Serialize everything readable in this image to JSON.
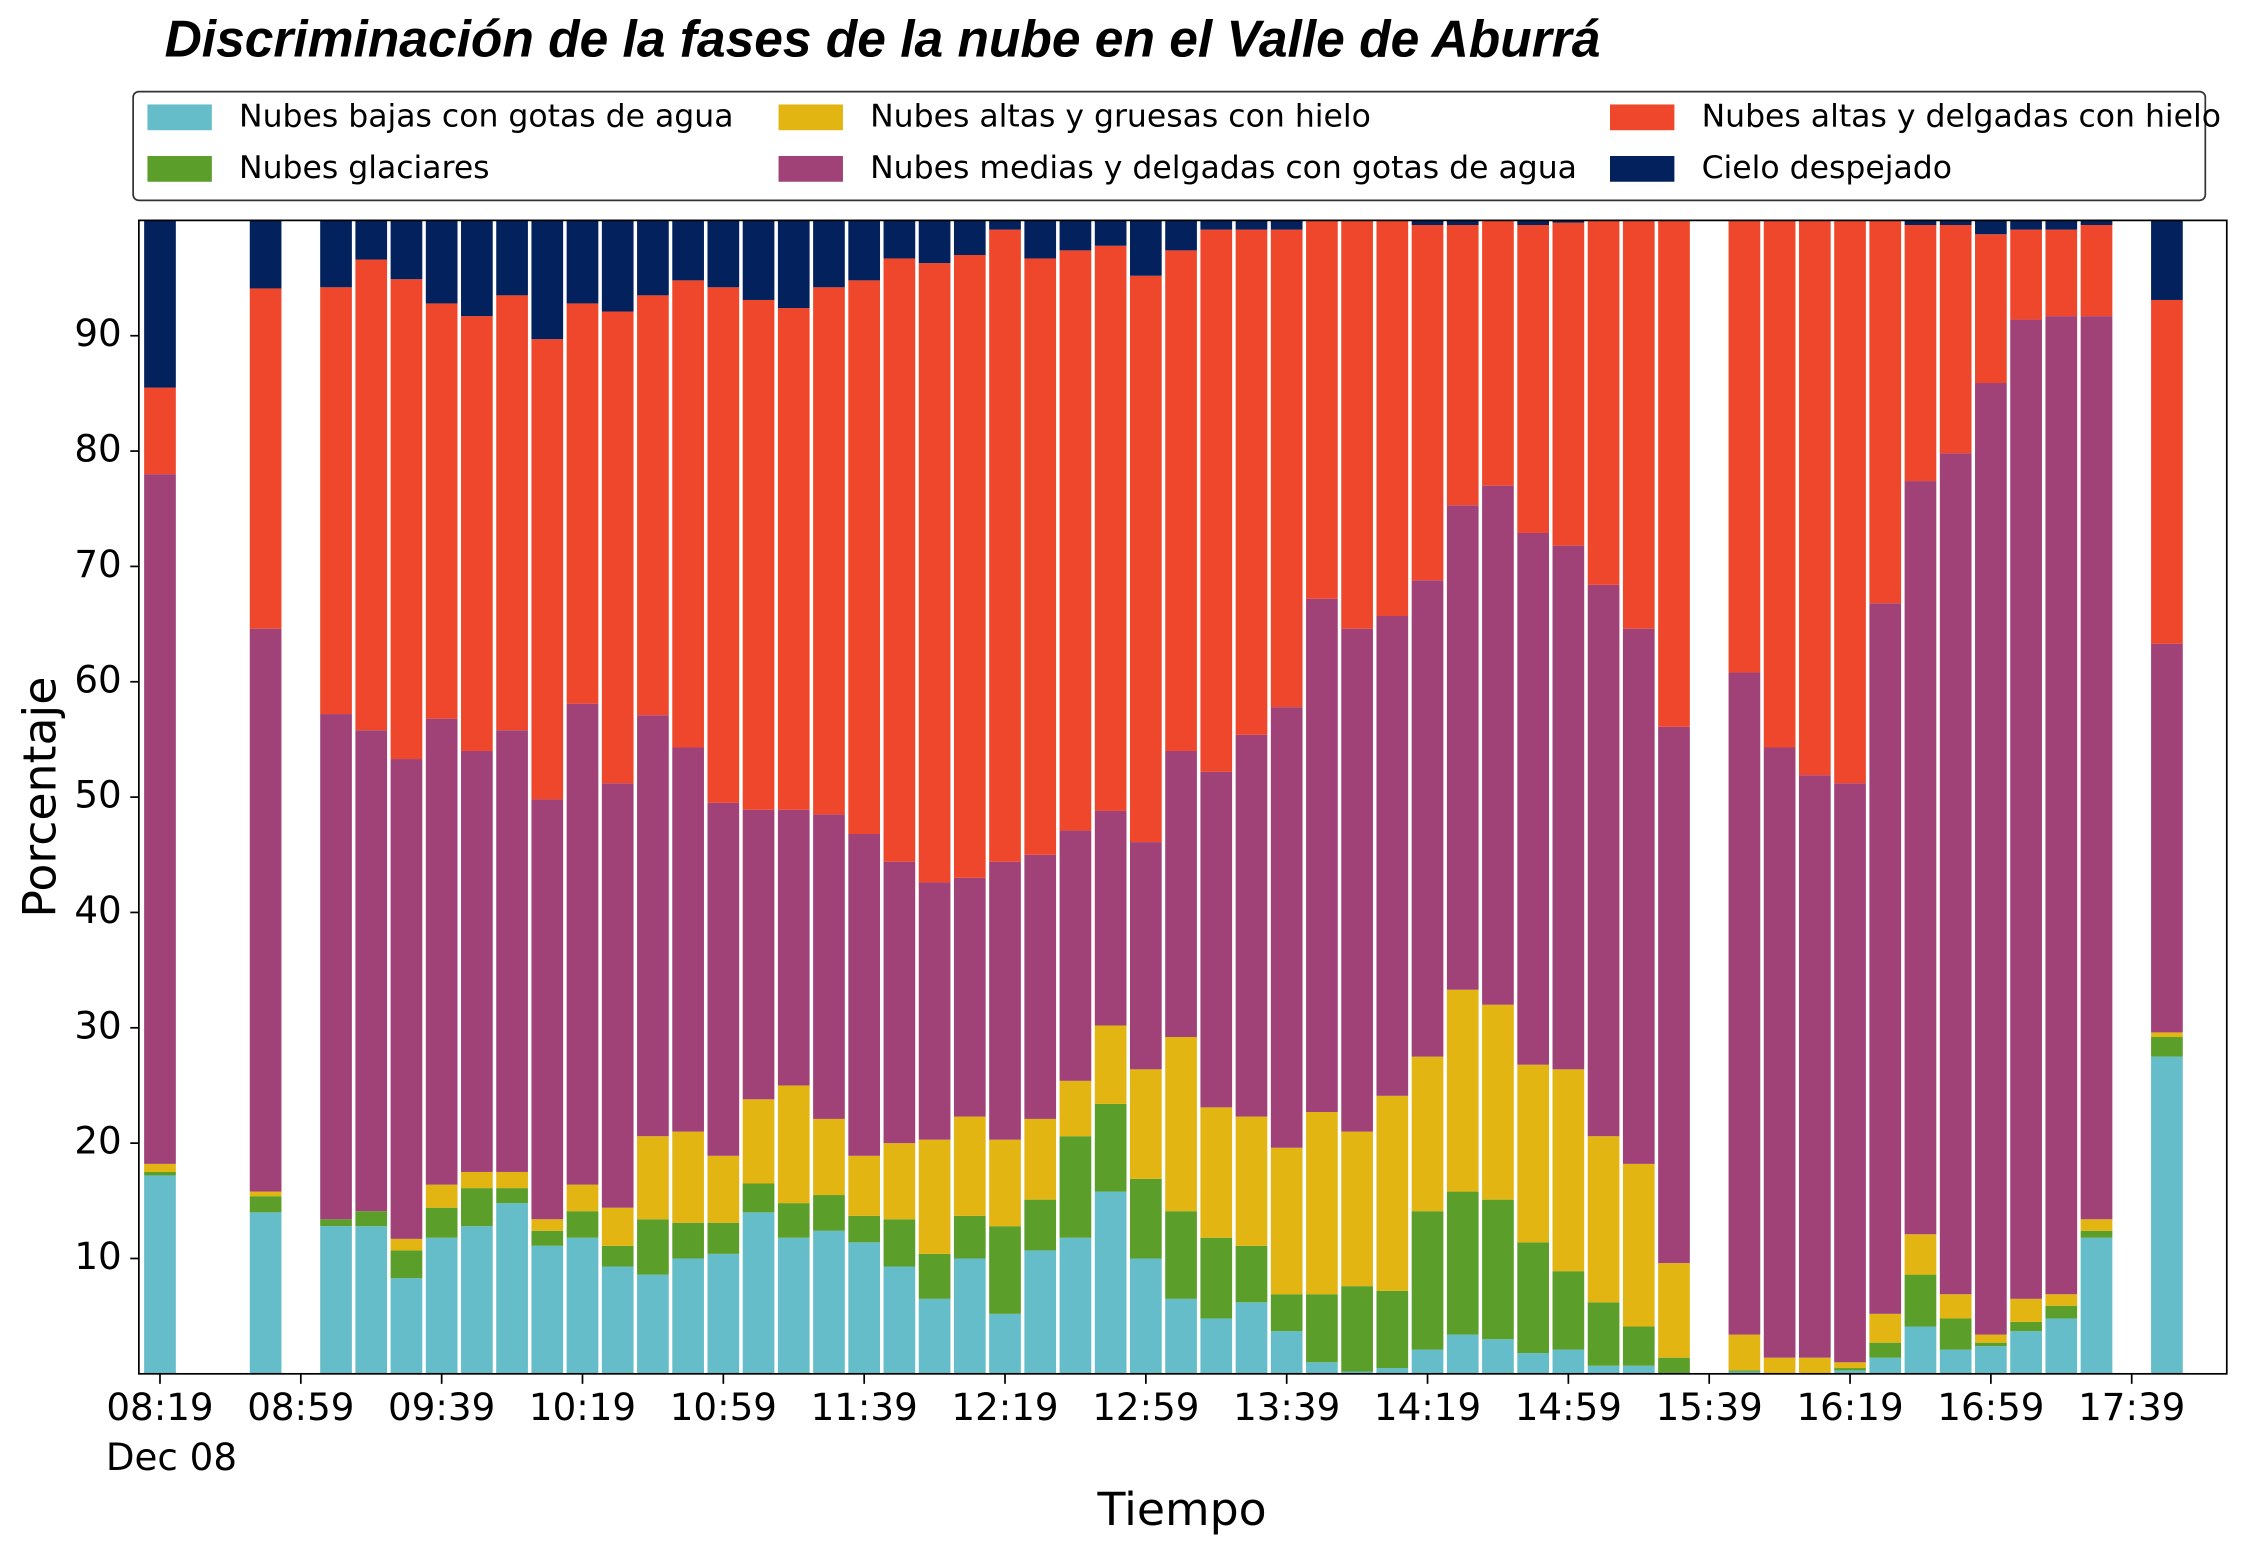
{
  "chart_data": {
    "type": "stacked_bar",
    "title": "Discriminación de la fases de la nube en el Valle de Aburrá",
    "xlabel": "Tiempo",
    "ylabel": "Porcentaje",
    "x_sublabel": "Dec 08",
    "x": [
      "08:19",
      "08:49",
      "09:09",
      "09:19",
      "09:29",
      "09:39",
      "09:49",
      "09:59",
      "10:09",
      "10:19",
      "10:29",
      "10:39",
      "10:49",
      "10:59",
      "11:09",
      "11:19",
      "11:29",
      "11:39",
      "11:49",
      "11:59",
      "12:09",
      "12:19",
      "12:29",
      "12:39",
      "12:49",
      "12:59",
      "13:09",
      "13:19",
      "13:29",
      "13:39",
      "13:49",
      "13:59",
      "14:09",
      "14:19",
      "14:29",
      "14:39",
      "14:49",
      "14:59",
      "15:09",
      "15:19",
      "15:29",
      "15:49",
      "15:59",
      "16:09",
      "16:19",
      "16:29",
      "16:39",
      "16:49",
      "16:59",
      "17:09",
      "17:19",
      "17:29",
      "17:49"
    ],
    "xlim": [
      "08:13",
      "18:06"
    ],
    "xticks": [
      "08:19",
      "08:59",
      "09:39",
      "10:19",
      "10:59",
      "11:39",
      "12:19",
      "12:59",
      "13:39",
      "14:19",
      "14:59",
      "15:39",
      "16:19",
      "16:59",
      "17:39"
    ],
    "ylim": [
      0,
      100
    ],
    "yticks": [
      10,
      20,
      30,
      40,
      50,
      60,
      70,
      80,
      90
    ],
    "legend": "top",
    "series": [
      {
        "name": "Nubes bajas con gotas de agua",
        "color": "#64bdc8",
        "values": [
          17.2,
          14,
          12.8,
          12.8,
          8.3,
          11.8,
          12.8,
          14.8,
          11.1,
          11.8,
          9.3,
          8.6,
          10,
          10.4,
          14,
          11.8,
          12.4,
          11.4,
          9.3,
          6.5,
          10,
          5.2,
          10.7,
          11.8,
          15.8,
          10,
          6.5,
          4.8,
          6.2,
          3.7,
          1,
          0.2,
          0.5,
          2.1,
          3.4,
          3,
          1.8,
          2.1,
          0.7,
          0.7,
          0,
          0.2,
          0,
          0,
          0.3,
          1.4,
          4.1,
          2.1,
          2.4,
          3.7,
          4.8,
          11.8,
          27.5
        ]
      },
      {
        "name": "Nubes glaciares",
        "color": "#5b9e2a",
        "values": [
          0.3,
          1.4,
          0.6,
          1.3,
          2.4,
          2.6,
          3.3,
          1.3,
          1.3,
          2.3,
          1.8,
          4.8,
          3.1,
          2.7,
          2.5,
          3,
          3.1,
          2.3,
          4.1,
          3.9,
          3.7,
          7.6,
          4.4,
          8.8,
          7.6,
          6.9,
          7.6,
          7,
          4.9,
          3.2,
          5.9,
          7.4,
          6.7,
          12,
          12.4,
          12.1,
          9.6,
          6.8,
          5.5,
          3.4,
          1.4,
          0.1,
          0,
          0,
          0.2,
          1.3,
          4.5,
          2.7,
          0.3,
          0.8,
          1.1,
          0.6,
          1.7
        ]
      },
      {
        "name": "Nubes altas y gruesas con hielo",
        "color": "#e2b513",
        "values": [
          0.7,
          0.4,
          0,
          0,
          1,
          2,
          1.4,
          1.4,
          1,
          2.3,
          3.3,
          7.2,
          7.9,
          5.8,
          7.3,
          10.2,
          6.6,
          5.2,
          6.6,
          9.9,
          8.6,
          7.5,
          7,
          4.8,
          6.8,
          9.5,
          15.1,
          11.3,
          11.2,
          12.7,
          15.8,
          13.4,
          16.9,
          13.4,
          17.5,
          16.9,
          15.4,
          17.5,
          14.4,
          14.1,
          8.2,
          3.1,
          1.4,
          1.4,
          0.5,
          2.5,
          3.5,
          2.1,
          0.7,
          2,
          1,
          1,
          0.4
        ]
      },
      {
        "name": "Nubes medias y delgadas con gotas de agua",
        "color": "#a04278",
        "values": [
          59.8,
          48.8,
          43.8,
          41.7,
          41.6,
          40.4,
          36.5,
          38.3,
          36.4,
          41.7,
          36.8,
          36.5,
          33.3,
          30.6,
          25.1,
          23.9,
          26.4,
          27.9,
          24.4,
          22.3,
          20.7,
          24.1,
          22.9,
          21.7,
          18.6,
          19.7,
          24.8,
          29.1,
          33.1,
          38.2,
          44.5,
          43.6,
          41.6,
          41.3,
          42,
          45,
          46.1,
          45.4,
          47.8,
          46.4,
          46.5,
          57.4,
          52.9,
          50.5,
          50.2,
          61.6,
          65.3,
          72.9,
          82.5,
          84.9,
          84.8,
          78.3,
          33.7
        ]
      },
      {
        "name": "Nubes altas y delgadas con hielo",
        "color": "#ee472b",
        "values": [
          7.5,
          29.5,
          37,
          40.8,
          41.6,
          36,
          37.7,
          37.7,
          39.9,
          34.7,
          40.9,
          36.4,
          40.5,
          44.7,
          44.2,
          43.5,
          45.7,
          48,
          52.3,
          53.7,
          54,
          54.8,
          51.7,
          50.3,
          49,
          49.1,
          43.4,
          47,
          43.8,
          41.4,
          32.8,
          35.4,
          34.3,
          30.8,
          24.3,
          23,
          26.7,
          28,
          31.6,
          35.4,
          43.9,
          39.2,
          45.7,
          48.1,
          48.8,
          33.2,
          22.2,
          19.8,
          12.9,
          7.8,
          7.5,
          7.9,
          29.8
        ]
      },
      {
        "name": "Cielo despejado",
        "color": "#03215c",
        "values": [
          14.5,
          5.9,
          5.8,
          3.4,
          5.1,
          7.2,
          8.3,
          6.5,
          10.3,
          7.2,
          7.9,
          6.5,
          5.2,
          5.8,
          6.9,
          7.6,
          5.8,
          5.2,
          3.3,
          3.7,
          3,
          0.8,
          3.3,
          2.6,
          2.2,
          4.8,
          2.6,
          0.8,
          0.8,
          0.8,
          0,
          0,
          0,
          0.4,
          0.4,
          0,
          0.4,
          0.2,
          0,
          0,
          0,
          0,
          0,
          0,
          0,
          0,
          0.4,
          0.4,
          1.2,
          0.8,
          0.8,
          0.4,
          6.9
        ]
      }
    ]
  }
}
